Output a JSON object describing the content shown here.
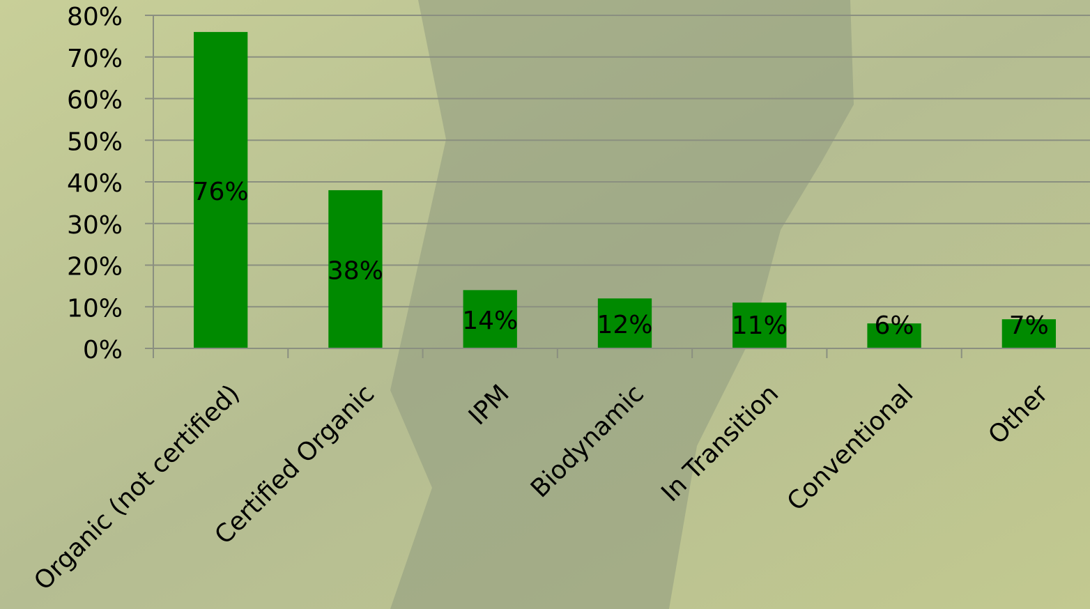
{
  "chart_data": {
    "type": "bar",
    "categories": [
      "Organic (not certified)",
      "Certified Organic",
      "IPM",
      "Biodynamic",
      "In Transition",
      "Conventional",
      "Other"
    ],
    "values": [
      76,
      38,
      14,
      12,
      11,
      6,
      7
    ],
    "value_labels": [
      "76%",
      "38%",
      "14%",
      "12%",
      "11%",
      "6%",
      "7%"
    ],
    "color": "#008a00",
    "ylim": [
      0,
      80
    ],
    "yticks": [
      {
        "value": 0,
        "label": "0%"
      },
      {
        "value": 10,
        "label": "10%"
      },
      {
        "value": 20,
        "label": "20%"
      },
      {
        "value": 30,
        "label": "30%"
      },
      {
        "value": 40,
        "label": "40%"
      },
      {
        "value": 50,
        "label": "50%"
      },
      {
        "value": 60,
        "label": "60%"
      },
      {
        "value": 70,
        "label": "70%"
      },
      {
        "value": 80,
        "label": "80%"
      }
    ],
    "grid": true
  }
}
